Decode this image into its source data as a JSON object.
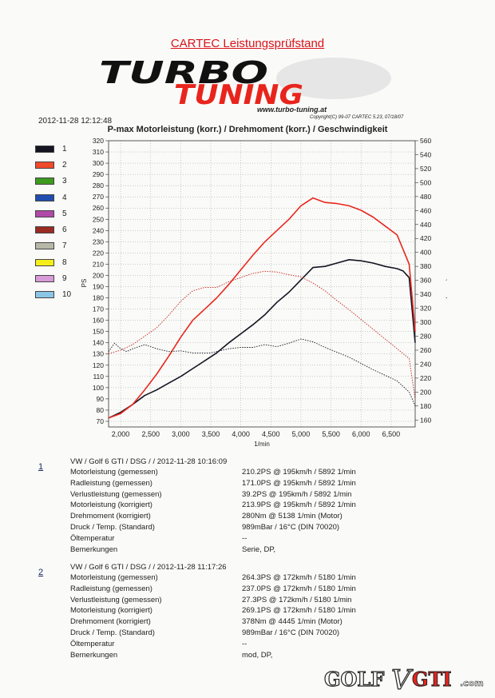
{
  "header": {
    "title": "CARTEC Leistungsprüfstand",
    "logo_top": "TURBO",
    "logo_bottom": "TUNING",
    "logo_url": "www.turbo-tuning.at",
    "datetime": "2012-11-28 12:12:48",
    "copyright": "Copyright(C) 99-07 CARTEC 5.23, 07/18/07"
  },
  "chart_title": "P-max Motorleistung (korr.) / Drehmoment (korr.) / Geschwindigkeit",
  "legend": [
    {
      "label": "1",
      "color": "#141422"
    },
    {
      "label": "2",
      "color": "#f04a2a"
    },
    {
      "label": "3",
      "color": "#3d9a1e"
    },
    {
      "label": "4",
      "color": "#1f4db0"
    },
    {
      "label": "5",
      "color": "#b04aa8"
    },
    {
      "label": "6",
      "color": "#9a2c22"
    },
    {
      "label": "7",
      "color": "#b8b8a8"
    },
    {
      "label": "8",
      "color": "#f5ee1a"
    },
    {
      "label": "9",
      "color": "#d89ad8"
    },
    {
      "label": "10",
      "color": "#8cc6e6"
    }
  ],
  "chart_data": {
    "type": "line",
    "xlabel": "1/min",
    "ylabel": "PS",
    "y2label": "Nm (Motor)",
    "xlim": [
      1800,
      6900
    ],
    "ylim": [
      65,
      320
    ],
    "y2lim": [
      150,
      560
    ],
    "x_ticks": [
      "2,000",
      "2,500",
      "3,000",
      "3,500",
      "4,000",
      "4,500",
      "5,000",
      "5,500",
      "6,000",
      "6,500"
    ],
    "x_tick_values": [
      2000,
      2500,
      3000,
      3500,
      4000,
      4500,
      5000,
      5500,
      6000,
      6500
    ],
    "y_ticks": [
      70,
      80,
      90,
      100,
      110,
      120,
      130,
      140,
      150,
      160,
      170,
      180,
      190,
      200,
      210,
      220,
      230,
      240,
      250,
      260,
      270,
      280,
      290,
      300,
      310,
      320
    ],
    "y2_ticks": [
      160,
      180,
      200,
      220,
      240,
      260,
      280,
      300,
      320,
      340,
      360,
      380,
      400,
      420,
      440,
      460,
      480,
      500,
      520,
      540,
      560
    ],
    "series": [
      {
        "name": "1",
        "role": "power",
        "axis": "left",
        "color": "#141422",
        "width": 1.6,
        "x": [
          1800,
          2000,
          2200,
          2400,
          2600,
          2800,
          3000,
          3200,
          3400,
          3600,
          3800,
          4000,
          4200,
          4400,
          4600,
          4800,
          5000,
          5200,
          5400,
          5600,
          5800,
          6000,
          6200,
          6400,
          6600,
          6700,
          6800,
          6900
        ],
        "y": [
          73,
          78,
          85,
          93,
          98,
          104,
          110,
          117,
          124,
          131,
          140,
          148,
          156,
          165,
          176,
          185,
          196,
          207,
          208,
          211,
          214,
          213,
          211,
          208,
          206,
          204,
          198,
          140
        ]
      },
      {
        "name": "2",
        "role": "power",
        "axis": "left",
        "color": "#e8281e",
        "width": 1.6,
        "x": [
          1800,
          2000,
          2200,
          2400,
          2600,
          2800,
          3000,
          3200,
          3400,
          3600,
          3800,
          4000,
          4200,
          4400,
          4600,
          4800,
          5000,
          5200,
          5400,
          5600,
          5800,
          6000,
          6200,
          6400,
          6600,
          6800,
          6900
        ],
        "y": [
          73,
          77,
          85,
          98,
          112,
          128,
          145,
          160,
          170,
          180,
          192,
          205,
          218,
          230,
          240,
          250,
          262,
          269,
          265,
          264,
          262,
          258,
          252,
          244,
          236,
          210,
          150
        ]
      },
      {
        "name": "1",
        "role": "torque",
        "axis": "right",
        "color": "#141422",
        "dashed": true,
        "x": [
          1800,
          1900,
          2000,
          2100,
          2200,
          2400,
          2600,
          2800,
          3000,
          3200,
          3500,
          3800,
          4000,
          4200,
          4400,
          4600,
          4800,
          5000,
          5200,
          5400,
          5600,
          5800,
          6000,
          6200,
          6400,
          6600,
          6800,
          6900
        ],
        "y": [
          258,
          270,
          262,
          258,
          262,
          268,
          262,
          258,
          259,
          256,
          256,
          262,
          264,
          264,
          268,
          265,
          270,
          276,
          272,
          264,
          257,
          250,
          241,
          232,
          224,
          216,
          200,
          180
        ]
      },
      {
        "name": "2",
        "role": "torque",
        "axis": "right",
        "color": "#c0281e",
        "dashed": true,
        "x": [
          1800,
          2000,
          2200,
          2400,
          2600,
          2800,
          3000,
          3200,
          3400,
          3600,
          3800,
          4000,
          4200,
          4400,
          4600,
          4800,
          5000,
          5200,
          5400,
          5600,
          5800,
          6000,
          6200,
          6400,
          6600,
          6800,
          6900
        ],
        "y": [
          255,
          260,
          268,
          280,
          292,
          310,
          330,
          345,
          350,
          350,
          358,
          364,
          370,
          373,
          372,
          368,
          365,
          356,
          345,
          331,
          318,
          304,
          290,
          276,
          262,
          248,
          190
        ]
      }
    ]
  },
  "records": [
    {
      "number": "1",
      "header": "VW / Golf 6 GTI / DSG /  / 2012-11-28 10:16:09",
      "rows": [
        {
          "label": "Motorleistung (gemessen)",
          "value": "210.2PS @ 195km/h / 5892 1/min"
        },
        {
          "label": "Radleistung (gemessen)",
          "value": "171.0PS @ 195km/h / 5892 1/min"
        },
        {
          "label": "Verlustleistung (gemessen)",
          "value": "39.2PS @ 195km/h / 5892 1/min"
        },
        {
          "label": "Motorleistung (korrigiert)",
          "value": "213.9PS @ 195km/h / 5892 1/min"
        },
        {
          "label": "Drehmoment (korrigiert)",
          "value": "280Nm @ 5138 1/min (Motor)"
        },
        {
          "label": "Druck / Temp. (Standard)",
          "value": "989mBar / 16°C     (DIN 70020)"
        },
        {
          "label": "Öltemperatur",
          "value": "--"
        },
        {
          "label": "Bemerkungen",
          "value": "Serie, DP,"
        }
      ]
    },
    {
      "number": "2",
      "header": "VW / Golf 6 GTI / DSG /  / 2012-11-28 11:17:26",
      "rows": [
        {
          "label": "Motorleistung (gemessen)",
          "value": "264.3PS @ 172km/h / 5180 1/min"
        },
        {
          "label": "Radleistung (gemessen)",
          "value": "237.0PS @ 172km/h / 5180 1/min"
        },
        {
          "label": "Verlustleistung (gemessen)",
          "value": "27.3PS @ 172km/h / 5180 1/min"
        },
        {
          "label": "Motorleistung (korrigiert)",
          "value": "269.1PS @ 172km/h / 5180 1/min"
        },
        {
          "label": "Drehmoment (korrigiert)",
          "value": "378Nm @ 4445 1/min (Motor)"
        },
        {
          "label": "Druck / Temp. (Standard)",
          "value": "989mBar / 16°C     (DIN 70020)"
        },
        {
          "label": "Öltemperatur",
          "value": "--"
        },
        {
          "label": "Bemerkungen",
          "value": "mod, DP,"
        }
      ]
    }
  ],
  "watermark": {
    "left": "GOLF",
    "mid": "V",
    "right": "GTI",
    "suffix": ".com"
  }
}
